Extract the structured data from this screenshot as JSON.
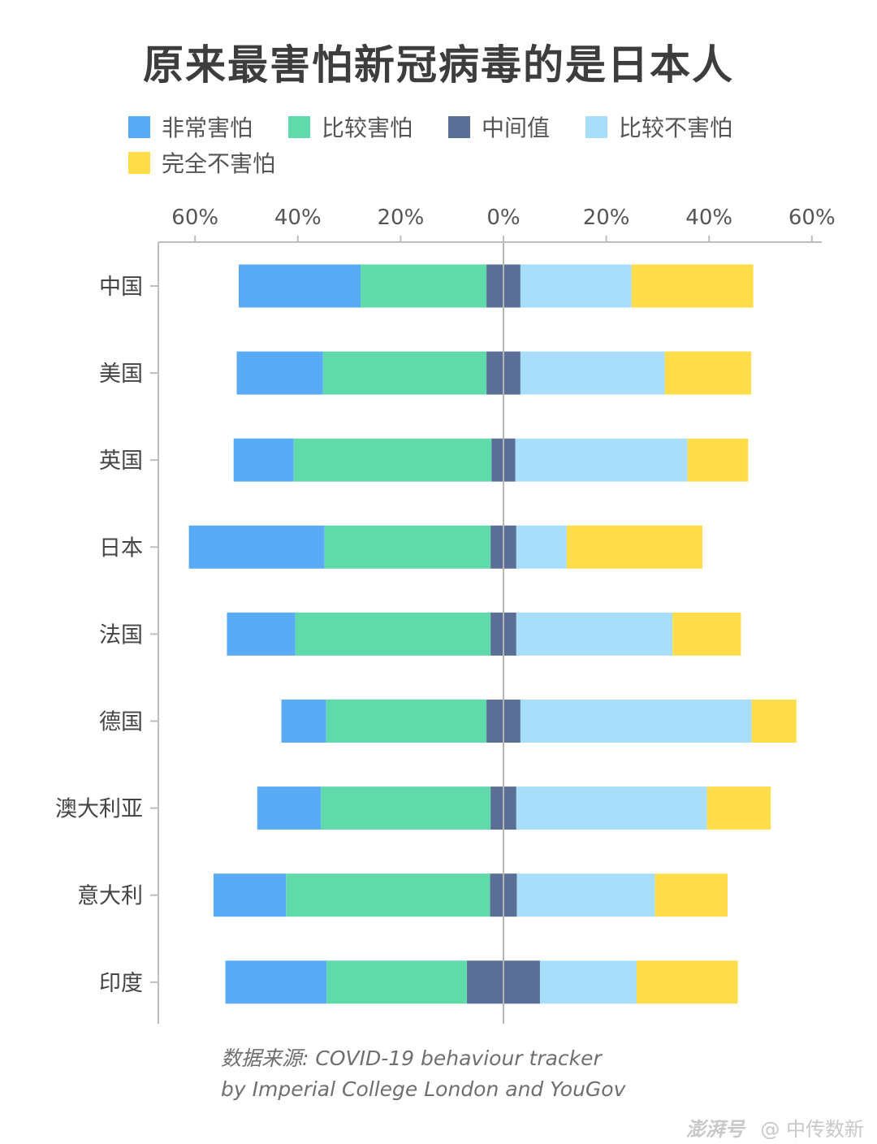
{
  "title": "原来最害怕新冠病毒的是日本人",
  "source_lines": [
    "数据来源:   COVID-19 behaviour tracker",
    "by Imperial College London and YouGov"
  ],
  "watermark": {
    "mark": "澎湃号",
    "text": "@ 中传数新"
  },
  "legend": [
    {
      "name": "非常害怕",
      "color": "#5aabf5"
    },
    {
      "name": "比较害怕",
      "color": "#60d9ab"
    },
    {
      "name": "中间值",
      "color": "#5a6e96"
    },
    {
      "name": "比较不害怕",
      "color": "#a8defa"
    },
    {
      "name": "完全不害怕",
      "color": "#fedc4a"
    }
  ],
  "chart_data": {
    "type": "bar",
    "orientation": "horizontal",
    "layout": "diverging-stacked",
    "categories": [
      "中国",
      "美国",
      "英国",
      "日本",
      "法国",
      "德国",
      "澳大利亚",
      "意大利",
      "印度"
    ],
    "xlim": [
      -67,
      62
    ],
    "ticks": [
      -60,
      -40,
      -20,
      0,
      20,
      40,
      60
    ],
    "tick_labels": [
      "60%",
      "40%",
      "20%",
      "0%",
      "20%",
      "40%",
      "60%"
    ],
    "series": [
      {
        "name": "非常害怕",
        "color": "#5aabf5",
        "values": [
          23.7,
          16.8,
          11.7,
          26.4,
          13.3,
          8.7,
          12.4,
          14.1,
          19.7
        ]
      },
      {
        "name": "比较害怕",
        "color": "#60d9ab",
        "values": [
          24.5,
          31.8,
          38.5,
          32.3,
          38.0,
          31.2,
          33.0,
          39.7,
          27.3
        ]
      },
      {
        "name": "中间值",
        "color": "#5a6e96",
        "values": [
          6.6,
          6.6,
          4.6,
          5.0,
          5.0,
          6.6,
          5.0,
          5.2,
          14.2
        ]
      },
      {
        "name": "比较不害怕",
        "color": "#a8defa",
        "values": [
          21.6,
          28.1,
          33.5,
          9.8,
          30.4,
          45.0,
          37.1,
          26.9,
          18.8
        ]
      },
      {
        "name": "完全不害怕",
        "color": "#fedc4a",
        "values": [
          23.7,
          16.8,
          11.8,
          26.4,
          13.3,
          8.7,
          12.4,
          14.1,
          19.7
        ]
      }
    ]
  }
}
